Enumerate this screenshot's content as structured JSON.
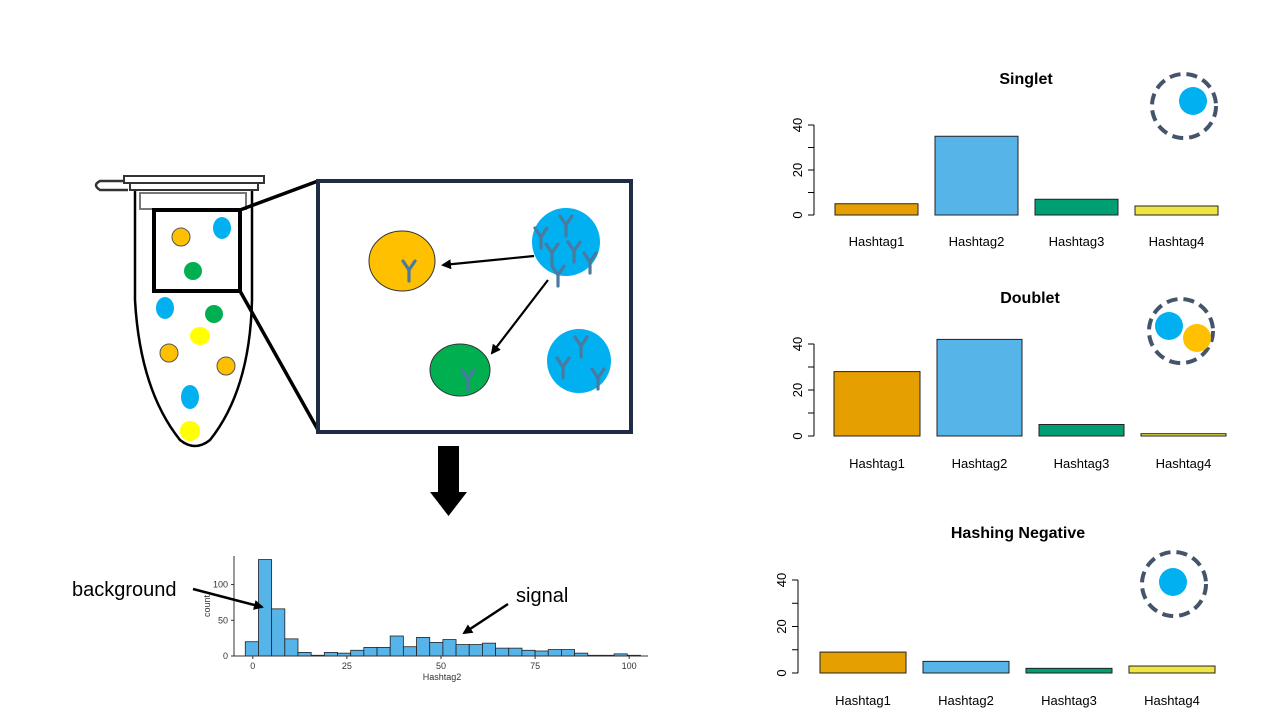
{
  "colors": {
    "orange": "#E69F00",
    "orange_cell": "#FFC000",
    "sky_blue": "#56B4E9",
    "cell_blue": "#00B0F0",
    "green": "#009E73",
    "cell_green": "#00B050",
    "yellow": "#F0E442",
    "cell_yellow": "#FFFF00",
    "antibody": "#4A7A9F",
    "navy": "#1F2D44",
    "dashed_ring": "#44546A"
  },
  "icons": [
    "tube-icon",
    "antibody-icon",
    "down-arrow-icon",
    "cell-ring-icon"
  ],
  "annotations": {
    "background": "background",
    "signal": "signal"
  },
  "chart_data": [
    {
      "id": "histogram",
      "type": "bar",
      "title": "",
      "xlabel": "Hashtag2",
      "ylabel": "count",
      "xlim": [
        -5,
        105
      ],
      "ylim": [
        0,
        140
      ],
      "x_ticks": [
        "0",
        "25",
        "50",
        "75",
        "100"
      ],
      "y_ticks": [
        "0",
        "50",
        "100"
      ],
      "bin_width": 3.5,
      "bin_starts": [
        -2,
        1.5,
        5,
        8.5,
        12,
        15.5,
        19,
        22.5,
        26,
        29.5,
        33,
        36.5,
        40,
        43.5,
        47,
        50.5,
        54,
        57.5,
        61,
        64.5,
        68,
        71.5,
        75,
        78.5,
        82,
        85.5,
        89,
        92.5,
        96,
        99.5
      ],
      "values": [
        20,
        135,
        66,
        24,
        5,
        1,
        5,
        4,
        8,
        12,
        12,
        28,
        13,
        26,
        19,
        23,
        16,
        16,
        18,
        11,
        11,
        8,
        7,
        9,
        9,
        4,
        1,
        1,
        3,
        1
      ]
    },
    {
      "id": "singlet",
      "type": "bar",
      "title": "Singlet",
      "categories": [
        "Hashtag1",
        "Hashtag2",
        "Hashtag3",
        "Hashtag4"
      ],
      "values": [
        5,
        35,
        7,
        4
      ],
      "ylim": [
        0,
        40
      ],
      "y_ticks": [
        "0",
        "20",
        "40"
      ]
    },
    {
      "id": "doublet",
      "type": "bar",
      "title": "Doublet",
      "categories": [
        "Hashtag1",
        "Hashtag2",
        "Hashtag3",
        "Hashtag4"
      ],
      "values": [
        28,
        42,
        5,
        1
      ],
      "ylim": [
        0,
        40
      ],
      "y_ticks": [
        "0",
        "20",
        "40"
      ]
    },
    {
      "id": "negative",
      "type": "bar",
      "title": "Hashing Negative",
      "categories": [
        "Hashtag1",
        "Hashtag2",
        "Hashtag3",
        "Hashtag4"
      ],
      "values": [
        9,
        5,
        2,
        3
      ],
      "ylim": [
        0,
        40
      ],
      "y_ticks": [
        "0",
        "20",
        "40"
      ]
    }
  ]
}
